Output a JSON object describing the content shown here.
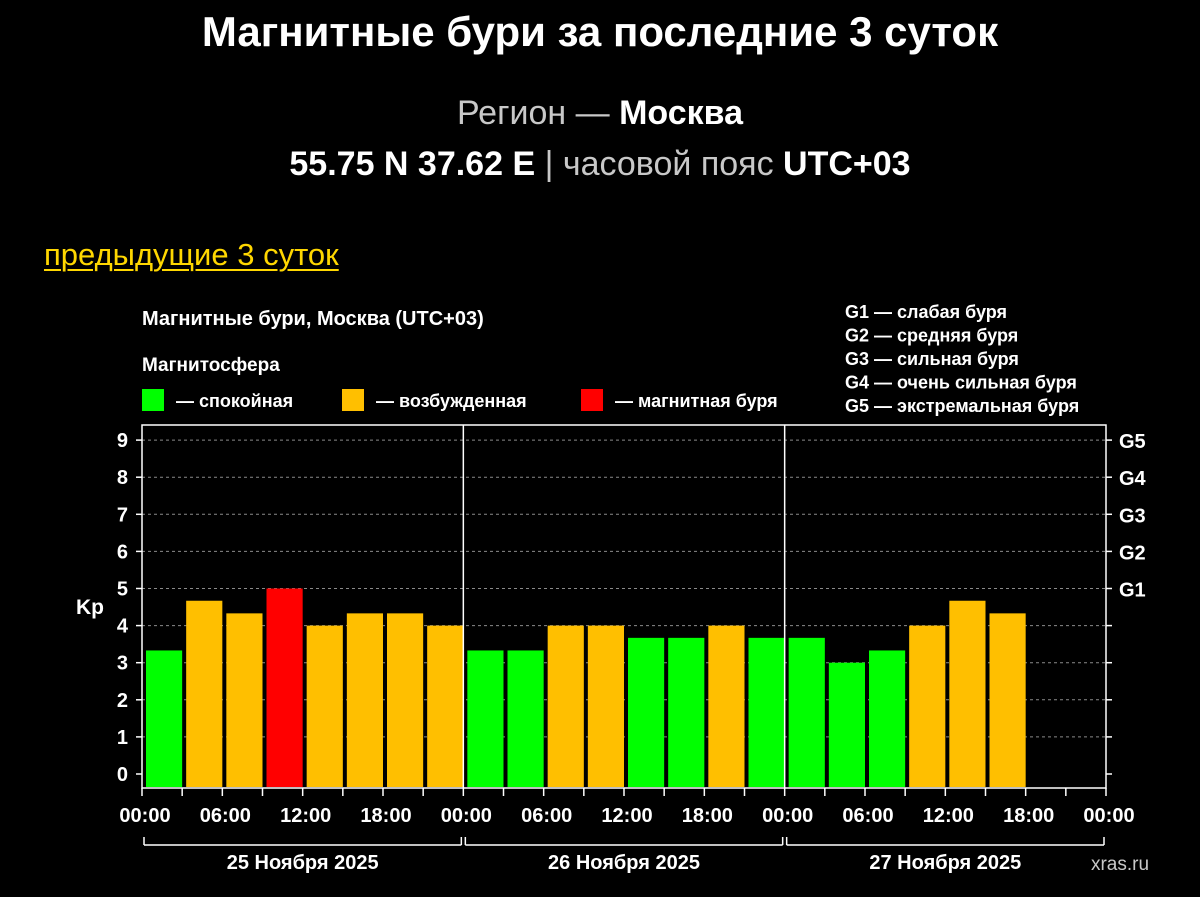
{
  "header": {
    "title": "Магнитные бури за последние 3 суток",
    "region_label": "Регион —",
    "region_name": "Москва",
    "coords": "55.75 N 37.62 E",
    "separator": "|",
    "tz_label": "часовой пояс",
    "tz_value": "UTC+03"
  },
  "nav": {
    "prev_link": "предыдущие 3 суток"
  },
  "chart_data": {
    "type": "bar",
    "title": "Магнитные бури, Москва (UTC+03)",
    "legend_title": "Магнитосфера",
    "legend": [
      {
        "label": "— спокойная",
        "color": "#00ff00"
      },
      {
        "label": "— возбужденная",
        "color": "#ffbf00"
      },
      {
        "label": "— магнитная буря",
        "color": "#ff0000"
      }
    ],
    "storm_scale": [
      "G1 — слабая буря",
      "G2 — средняя буря",
      "G3 — сильная буря",
      "G4 — очень сильная буря",
      "G5 — экстремальная буря"
    ],
    "ylabel": "Kp",
    "ylim": [
      0,
      9
    ],
    "yticks": [
      "0",
      "1",
      "2",
      "3",
      "4",
      "5",
      "6",
      "7",
      "8",
      "9"
    ],
    "right_ticks": [
      {
        "kp": 5,
        "label": "G1"
      },
      {
        "kp": 6,
        "label": "G2"
      },
      {
        "kp": 7,
        "label": "G3"
      },
      {
        "kp": 8,
        "label": "G4"
      },
      {
        "kp": 9,
        "label": "G5"
      }
    ],
    "grid": true,
    "xtick_labels": [
      "00:00",
      "06:00",
      "12:00",
      "18:00",
      "00:00",
      "06:00",
      "12:00",
      "18:00",
      "00:00",
      "06:00",
      "12:00",
      "18:00",
      "00:00"
    ],
    "days": [
      "25 Ноября 2025",
      "26 Ноября 2025",
      "27 Ноября 2025"
    ],
    "slot_hours": 3,
    "total_slots": 24,
    "values": [
      3.33,
      4.67,
      4.33,
      5.0,
      4.0,
      4.33,
      4.33,
      4.0,
      3.33,
      3.33,
      4.0,
      4.0,
      3.67,
      3.67,
      4.0,
      3.67,
      3.67,
      3.0,
      3.33,
      4.0,
      4.67,
      4.33
    ],
    "colors": {
      "quiet": "#00ff00",
      "unsettled": "#ffbf00",
      "storm": "#ff0000"
    },
    "watermark": "xras.ru"
  }
}
